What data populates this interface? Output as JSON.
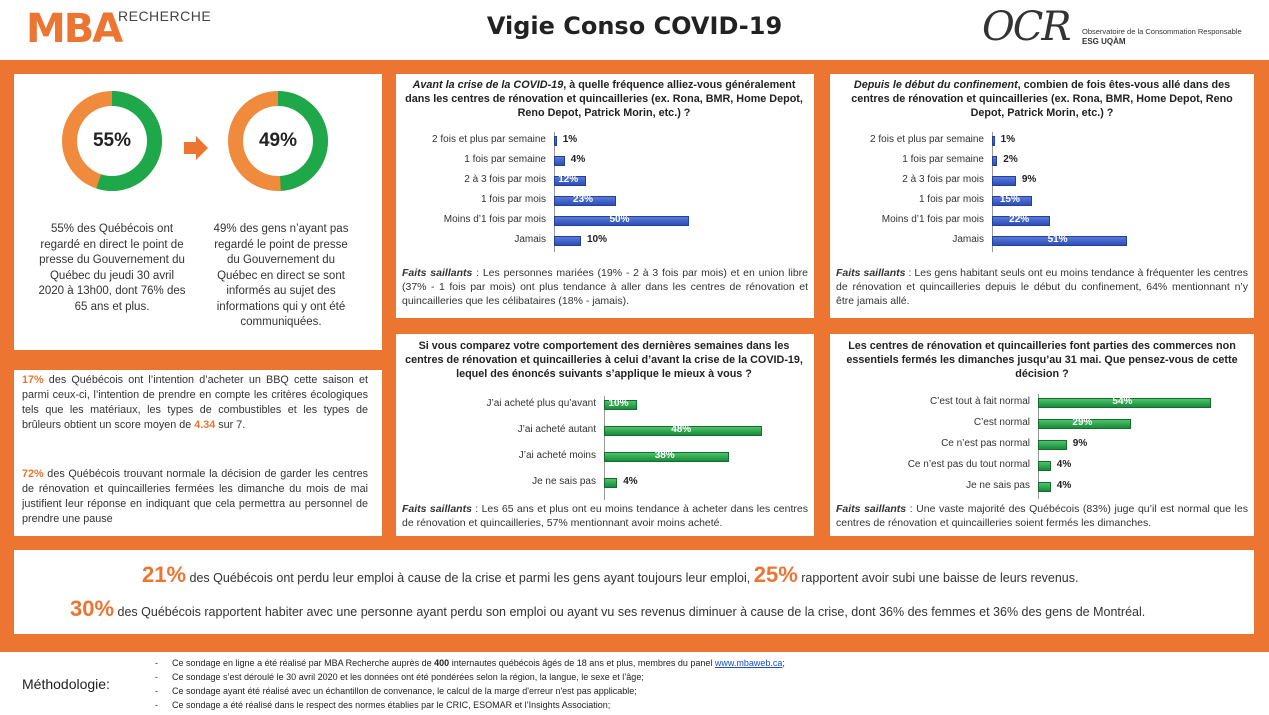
{
  "header": {
    "brand": "MBA",
    "brand_sub": "RECHERCHE",
    "title": "Vigie Conso COVID-19",
    "ocr": "OCR",
    "ocr_line1": "Observatoire de la Consommation Responsable",
    "ocr_line2": "ESG UQÀM"
  },
  "pies": {
    "left": {
      "value": 55,
      "label": "55%",
      "desc": "55% des Québécois ont regardé en direct le point de presse du Gouvernement du Québec du jeudi 30 avril 2020 à 13h00, dont 76% des 65 ans et plus."
    },
    "right": {
      "value": 49,
      "label": "49%",
      "desc": "49% des gens n’ayant pas regardé le point de presse du Gouvernement du Québec en direct se sont informés au sujet des informations qui y ont été communiquées."
    },
    "colors": {
      "primary": "#1fa84a",
      "secondary": "#f08a3c"
    }
  },
  "q1": {
    "title_italic": "Avant la crise de la COVID-19",
    "title_rest": ", à quelle fréquence alliez-vous généralement dans les centres de rénovation et quincailleries (ex. Rona, BMR, Home Depot, Reno Depot, Patrick Morin, etc.) ?",
    "categories": [
      "2 fois et plus par semaine",
      "1 fois par semaine",
      "2 à 3 fois par mois",
      "1 fois par mois",
      "Moins d’1 fois par mois",
      "Jamais"
    ],
    "values": [
      1,
      4,
      12,
      23,
      50,
      10
    ],
    "labels": [
      "1%",
      "4%",
      "12%",
      "23%",
      "50%",
      "10%"
    ],
    "faits_label": "Faits saillants",
    "faits": " : Les personnes mariées (19% - 2 à 3 fois par mois) et en union libre (37% - 1 fois par mois) ont plus tendance à aller dans les centres de rénovation et quincailleries que les célibataires (18% - jamais)."
  },
  "q2": {
    "title_italic": "Depuis le début du confinement",
    "title_rest": ", combien de fois êtes-vous allé dans des centres de rénovation et quincailleries (ex. Rona, BMR, Home Depot, Reno Depot, Patrick Morin, etc.) ?",
    "categories": [
      "2 fois et plus par semaine",
      "1 fois par semaine",
      "2 à 3 fois par mois",
      "1 fois par mois",
      "Moins d’1 fois par mois",
      "Jamais"
    ],
    "values": [
      1,
      2,
      9,
      15,
      22,
      51
    ],
    "labels": [
      "1%",
      "2%",
      "9%",
      "15%",
      "22%",
      "51%"
    ],
    "faits_label": "Faits saillants",
    "faits": " : Les gens habitant seuls ont eu moins tendance à fréquenter les centres de rénovation et quincailleries depuis le début du confinement, 64% mentionnant n’y être jamais allé."
  },
  "q3": {
    "title": "Si vous comparez votre comportement des dernières semaines dans les centres de rénovation et quincailleries à celui d’avant la crise de la COVID-19, lequel des énoncés suivants s’applique le mieux à vous ?",
    "categories": [
      "J’ai acheté plus qu’avant",
      "J’ai acheté autant",
      "J’ai acheté moins",
      "Je ne sais pas"
    ],
    "values": [
      10,
      48,
      38,
      4
    ],
    "labels": [
      "10%",
      "48%",
      "38%",
      "4%"
    ],
    "faits_label": "Faits saillants",
    "faits": " : Les 65 ans et plus ont eu moins tendance à acheter dans les centres de rénovation et quincailleries, 57% mentionnant avoir moins acheté."
  },
  "q4": {
    "title": "Les centres de rénovation et quincailleries font parties des commerces non essentiels fermés les dimanches jusqu’au 31 mai. Que pensez-vous de cette décision ?",
    "categories": [
      "C’est tout à fait normal",
      "C’est normal",
      "Ce n’est pas normal",
      "Ce n’est pas du tout normal",
      "Je ne sais pas"
    ],
    "values": [
      54,
      29,
      9,
      4,
      4
    ],
    "labels": [
      "54%",
      "29%",
      "9%",
      "4%",
      "4%"
    ],
    "faits_label": "Faits saillants",
    "faits": " : Une vaste majorité des Québécois (83%) juge qu’il est normal que les centres de rénovation et quincailleries soient fermés les dimanches."
  },
  "left_box": {
    "p1_num": "17%",
    "p1_a": " des Québécois ont l’intention d’acheter un BBQ cette saison et parmi ceux-ci, l’intention de prendre en compte les critères écologiques tels que les matériaux, les types de combustibles et les types de brûleurs obtient un score moyen de ",
    "p1_score": "4.34",
    "p1_b": " sur 7.",
    "p2_num": "72%",
    "p2_a": " des Québécois trouvant normale la décision de garder les centres de rénovation et quincailleries fermées les dimanche du mois de mai justifient leur réponse en indiquant que cela permettra au personnel de prendre une pause"
  },
  "bottom": {
    "n1": "21%",
    "t1": " des Québécois ont perdu leur emploi à cause de la crise et parmi les gens ayant toujours leur emploi, ",
    "n2": "25%",
    "t2": " rapportent avoir subi une baisse de leurs revenus.",
    "n3": "30%",
    "t3": " des Québécois rapportent habiter avec une personne ayant perdu son emploi ou ayant vu ses revenus diminuer à cause de la crise, dont 36% des femmes et 36% des gens de Montréal."
  },
  "method": {
    "label": "Méthodologie:",
    "dash": "-",
    "l1a": "Ce sondage en ligne a été réalisé par MBA Recherche auprès de ",
    "l1n": "400",
    "l1b": " internautes québécois âgés de 18 ans et plus, membres du panel ",
    "l1link": "www.mbaweb.ca",
    "l1c": ";",
    "l2": "Ce sondage s’est déroulé le 30 avril 2020 et les données ont été pondérées selon la région, la langue, le sexe et l’âge;",
    "l3": "Ce sondage ayant été réalisé avec un échantillon de convenance, le calcul de la marge d'erreur n'est pas applicable;",
    "l4": "Ce sondage a été réalisé dans le respect des normes établies par le CRIC, ESOMAR et l’Insights Association;"
  }
}
